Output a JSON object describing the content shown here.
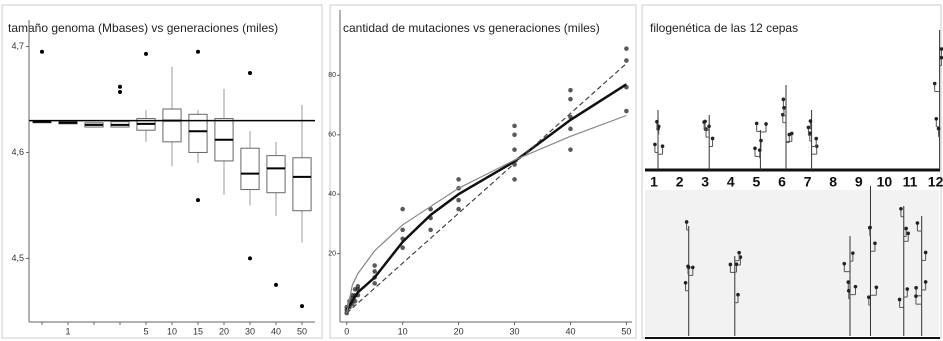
{
  "chart_data": [
    {
      "type": "box",
      "title": "tamaño genoma (Mbases) vs generaciones (miles)",
      "categories": [
        null,
        "1",
        null,
        null,
        "5",
        "10",
        "15",
        "20",
        "30",
        "40",
        "50"
      ],
      "boxes": [
        {
          "low": 4.628,
          "q1": 4.628,
          "median": 4.629,
          "q3": 4.63,
          "high": 4.63,
          "outliers": [
            4.695
          ]
        },
        {
          "low": 4.627,
          "q1": 4.627,
          "median": 4.628,
          "q3": 4.629,
          "high": 4.629,
          "outliers": []
        },
        {
          "low": 4.624,
          "q1": 4.624,
          "median": 4.626,
          "q3": 4.628,
          "high": 4.628,
          "outliers": []
        },
        {
          "low": 4.624,
          "q1": 4.624,
          "median": 4.626,
          "q3": 4.629,
          "high": 4.629,
          "outliers": [
            4.662,
            4.657
          ]
        },
        {
          "low": 4.61,
          "q1": 4.621,
          "median": 4.627,
          "q3": 4.632,
          "high": 4.64,
          "outliers": [
            4.693
          ]
        },
        {
          "low": 4.587,
          "q1": 4.61,
          "median": 4.63,
          "q3": 4.641,
          "high": 4.681,
          "outliers": []
        },
        {
          "low": 4.59,
          "q1": 4.6,
          "median": 4.62,
          "q3": 4.636,
          "high": 4.64,
          "outliers": [
            4.695,
            4.555
          ]
        },
        {
          "low": 4.56,
          "q1": 4.592,
          "median": 4.612,
          "q3": 4.632,
          "high": 4.66,
          "outliers": []
        },
        {
          "low": 4.55,
          "q1": 4.565,
          "median": 4.58,
          "q3": 4.604,
          "high": 4.62,
          "outliers": [
            4.675,
            4.5
          ]
        },
        {
          "low": 4.54,
          "q1": 4.562,
          "median": 4.585,
          "q3": 4.597,
          "high": 4.61,
          "outliers": [
            4.475
          ]
        },
        {
          "low": 4.515,
          "q1": 4.545,
          "median": 4.577,
          "q3": 4.595,
          "high": 4.645,
          "outliers": [
            4.455
          ]
        }
      ],
      "hline": 4.63,
      "color": "#000000",
      "ylim": [
        4.44,
        4.725
      ],
      "yticks": [
        {
          "value": 4.5,
          "label": "4,5"
        },
        {
          "value": 4.6,
          "label": "4,6"
        },
        {
          "value": 4.7,
          "label": "4,7"
        }
      ]
    },
    {
      "type": "scatter",
      "title": "cantidad de mutaciones vs generaciones (miles)",
      "x": [
        0,
        0,
        0,
        0.5,
        0.5,
        0.5,
        1,
        1,
        1,
        1.5,
        1.5,
        1.5,
        2,
        2,
        2,
        5,
        5,
        5,
        5,
        10,
        10,
        10,
        10,
        15,
        15,
        15,
        20,
        20,
        20,
        20,
        30,
        30,
        30,
        30,
        30,
        40,
        40,
        40,
        40,
        40,
        50,
        50,
        50,
        50
      ],
      "values": [
        0,
        1,
        2,
        2,
        3,
        4,
        3,
        5,
        6,
        4,
        6,
        8,
        6,
        8,
        9,
        10,
        12,
        14,
        16,
        22,
        25,
        28,
        35,
        28,
        32,
        35,
        35,
        38,
        42,
        45,
        45,
        50,
        55,
        60,
        63,
        55,
        62,
        66,
        72,
        75,
        68,
        76,
        85,
        89
      ],
      "color": "#222222",
      "fits": [
        {
          "x": [
            0,
            1,
            2,
            5,
            10,
            15,
            20,
            30,
            40,
            50
          ],
          "values": [
            1,
            4,
            7,
            12,
            24,
            33,
            40,
            51,
            65,
            77
          ],
          "color": "#111111",
          "width": 2.5,
          "dash": false
        },
        {
          "x": [
            0,
            50
          ],
          "values": [
            0,
            84
          ],
          "color": "#444444",
          "width": 1.2,
          "dash": true
        },
        {
          "x": [
            0,
            1,
            2,
            5,
            10,
            20,
            30,
            40,
            50
          ],
          "values": [
            0,
            9.4,
            13.3,
            21,
            29.7,
            42,
            51.5,
            59.5,
            66.5
          ],
          "color": "#888888",
          "width": 1.2,
          "dash": false
        }
      ],
      "xlim": [
        -1.2,
        51
      ],
      "ylim": [
        -3,
        102
      ],
      "xticks": [
        0,
        10,
        20,
        30,
        40,
        50
      ],
      "yticks": [
        20,
        40,
        60,
        80
      ]
    },
    {
      "type": "phylogeny",
      "title": "filogenética de las 12 cepas",
      "labels": [
        "1",
        "2",
        "3",
        "4",
        "5",
        "6",
        "7",
        "8",
        "9",
        "10",
        "11",
        "12"
      ]
    }
  ]
}
